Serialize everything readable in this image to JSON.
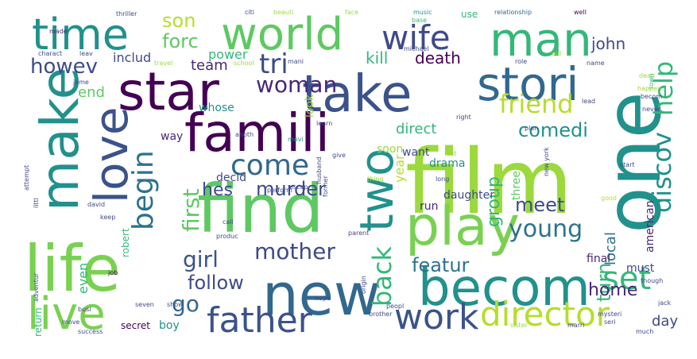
{
  "words": [
    {
      "text": "film",
      "color": "#9bd93c"
    },
    {
      "text": "famili",
      "color": "#440154"
    },
    {
      "text": "find",
      "color": "#5ec962"
    },
    {
      "text": "star",
      "color": "#440154"
    },
    {
      "text": "take",
      "color": "#3b528b"
    },
    {
      "text": "one",
      "color": "#21918c"
    },
    {
      "text": "life",
      "color": "#7ad151"
    },
    {
      "text": "new",
      "color": "#31688e"
    },
    {
      "text": "becom",
      "color": "#21918c"
    },
    {
      "text": "play",
      "color": "#7ad151"
    },
    {
      "text": "world",
      "color": "#5ec962"
    },
    {
      "text": "time",
      "color": "#21918c"
    },
    {
      "text": "man",
      "color": "#35b779"
    },
    {
      "text": "make",
      "color": "#21918c"
    },
    {
      "text": "love",
      "color": "#3b528b"
    },
    {
      "text": "live",
      "color": "#7ad151"
    },
    {
      "text": "stori",
      "color": "#31688e"
    },
    {
      "text": "two",
      "color": "#21918c"
    },
    {
      "text": "work",
      "color": "#3b528b"
    },
    {
      "text": "father",
      "color": "#3b528b"
    },
    {
      "text": "director",
      "color": "#b5de2b"
    },
    {
      "text": "wife",
      "color": "#3e4a89"
    },
    {
      "text": "help",
      "color": "#35b779"
    },
    {
      "text": "discov",
      "color": "#21918c"
    },
    {
      "text": "set",
      "color": "#35b779"
    },
    {
      "text": "come",
      "color": "#31688e"
    },
    {
      "text": "begin",
      "color": "#2c728e"
    },
    {
      "text": "tri",
      "color": "#3e4a89"
    },
    {
      "text": "friend",
      "color": "#b5de2b"
    },
    {
      "text": "woman",
      "color": "#482878"
    },
    {
      "text": "back",
      "color": "#35b779"
    },
    {
      "text": "young",
      "color": "#2c728e"
    },
    {
      "text": "mother",
      "color": "#3e4a89"
    },
    {
      "text": "girl",
      "color": "#3b528b"
    },
    {
      "text": "first",
      "color": "#5ec962"
    },
    {
      "text": "son",
      "color": "#b5de2b"
    },
    {
      "text": "forc",
      "color": "#5ec962"
    },
    {
      "text": "howev",
      "color": "#3e4a89"
    },
    {
      "text": "go",
      "color": "#31688e"
    },
    {
      "text": "follow",
      "color": "#3e4a89"
    },
    {
      "text": "comedi",
      "color": "#21918c"
    },
    {
      "text": "meet",
      "color": "#3e4a89"
    },
    {
      "text": "featur",
      "color": "#2c728e"
    },
    {
      "text": "murder",
      "color": "#3e4a89"
    },
    {
      "text": "turn",
      "color": "#35b779"
    },
    {
      "text": "home",
      "color": "#482878"
    },
    {
      "text": "group",
      "color": "#35b779"
    },
    {
      "text": "kill",
      "color": "#35b779"
    },
    {
      "text": "death",
      "color": "#440154"
    },
    {
      "text": "direct",
      "color": "#35b779"
    },
    {
      "text": "hes",
      "color": "#3e4a89"
    },
    {
      "text": "john",
      "color": "#3e4a89"
    },
    {
      "text": "team",
      "color": "#482878"
    },
    {
      "text": "includ",
      "color": "#3e4a89"
    },
    {
      "text": "end",
      "color": "#5ec962"
    },
    {
      "text": "power",
      "color": "#35b779"
    },
    {
      "text": "whose",
      "color": "#21918c"
    },
    {
      "text": "look",
      "color": "#9bd93c"
    },
    {
      "text": "even",
      "color": "#35b779"
    },
    {
      "text": "local",
      "color": "#2c728e"
    },
    {
      "text": "day",
      "color": "#3e4a89"
    },
    {
      "text": "year",
      "color": "#b5de2b"
    },
    {
      "text": "drama",
      "color": "#21918c"
    },
    {
      "text": "want",
      "color": "#3e4a89"
    },
    {
      "text": "soon",
      "color": "#9bd93c"
    },
    {
      "text": "decid",
      "color": "#3e4a89"
    },
    {
      "text": "way",
      "color": "#482878"
    },
    {
      "text": "robert",
      "color": "#35b779"
    },
    {
      "text": "daughter",
      "color": "#3e4a89"
    },
    {
      "text": "run",
      "color": "#482878"
    },
    {
      "text": "three",
      "color": "#5ec962"
    },
    {
      "text": "american",
      "color": "#482878"
    },
    {
      "text": "must",
      "color": "#3e4a89"
    },
    {
      "text": "final",
      "color": "#482878"
    },
    {
      "text": "boy",
      "color": "#21918c"
    },
    {
      "text": "return",
      "color": "#35b779"
    },
    {
      "text": "secret",
      "color": "#440154"
    },
    {
      "text": "thriller",
      "color": "#3e4a89"
    },
    {
      "text": "citi",
      "color": "#3e4a89"
    },
    {
      "text": "beauti",
      "color": "#9bd93c"
    },
    {
      "text": "face",
      "color": "#9bd93c"
    },
    {
      "text": "music",
      "color": "#21918c"
    },
    {
      "text": "base",
      "color": "#35b779"
    },
    {
      "text": "use",
      "color": "#35b779"
    },
    {
      "text": "relationship",
      "color": "#31688e"
    },
    {
      "text": "well",
      "color": "#440154"
    },
    {
      "text": "made",
      "color": "#482878"
    },
    {
      "text": "charact",
      "color": "#3e4a89"
    },
    {
      "text": "leav",
      "color": "#3e4a89"
    },
    {
      "text": "travel",
      "color": "#9bd93c"
    },
    {
      "text": "school",
      "color": "#9bd93c"
    },
    {
      "text": "name",
      "color": "#3e4a89"
    },
    {
      "text": "town",
      "color": "#35b779"
    },
    {
      "text": "role",
      "color": "#3e4a89"
    },
    {
      "text": "old",
      "color": "#9bd93c"
    },
    {
      "text": "dead",
      "color": "#9bd93c"
    },
    {
      "text": "plan",
      "color": "#3e4a89"
    },
    {
      "text": "lead",
      "color": "#3e4a89"
    },
    {
      "text": "learn",
      "color": "#3e4a89"
    },
    {
      "text": "anoth",
      "color": "#3e4a89"
    },
    {
      "text": "movi",
      "color": "#21918c"
    },
    {
      "text": "give",
      "color": "#3e4a89"
    },
    {
      "text": "long",
      "color": "#3e4a89"
    },
    {
      "text": "perform",
      "color": "#3e4a89"
    },
    {
      "text": "start",
      "color": "#3e4a89"
    },
    {
      "text": "former",
      "color": "#3e4a89"
    },
    {
      "text": "last",
      "color": "#9bd93c"
    },
    {
      "text": "good",
      "color": "#b5de2b"
    },
    {
      "text": "produc",
      "color": "#3e4a89"
    },
    {
      "text": "job",
      "color": "#440154"
    },
    {
      "text": "keep",
      "color": "#3e4a89"
    },
    {
      "text": "call",
      "color": "#3e4a89"
    },
    {
      "text": "parent",
      "color": "#3e4a89"
    },
    {
      "text": "peopl",
      "color": "#3e4a89"
    },
    {
      "text": "brother",
      "color": "#3e4a89"
    },
    {
      "text": "sister",
      "color": "#9bd93c"
    },
    {
      "text": "marri",
      "color": "#3e4a89"
    },
    {
      "text": "seri",
      "color": "#3e4a89"
    },
    {
      "text": "much",
      "color": "#3e4a89"
    },
    {
      "text": "jack",
      "color": "#3e4a89"
    },
    {
      "text": "though",
      "color": "#3e4a89"
    },
    {
      "text": "mysteri",
      "color": "#3e4a89"
    },
    {
      "text": "nope",
      "color": "#3e4a89"
    },
    {
      "text": "origin",
      "color": "#3e4a89"
    },
    {
      "text": "show",
      "color": "#3e4a89"
    },
    {
      "text": "seven",
      "color": "#3e4a89"
    },
    {
      "text": "success",
      "color": "#3e4a89"
    },
    {
      "text": "busi",
      "color": "#3e4a89"
    },
    {
      "text": "david",
      "color": "#3e4a89"
    },
    {
      "text": "littl",
      "color": "#3e4a89"
    },
    {
      "text": "attempt",
      "color": "#3e4a89"
    },
    {
      "text": "adventur",
      "color": "#3e4a89"
    },
    {
      "text": "husband",
      "color": "#3e4a89"
    },
    {
      "text": "escap",
      "color": "#3e4a89"
    },
    {
      "text": "mani",
      "color": "#3e4a89"
    },
    {
      "text": "jame",
      "color": "#3e4a89"
    },
    {
      "text": "right",
      "color": "#3e4a89"
    },
    {
      "text": "thing",
      "color": "#9bd93c"
    },
    {
      "text": "new york",
      "color": "#3e4a89"
    },
    {
      "text": "michael",
      "color": "#3e4a89"
    },
    {
      "text": "becom",
      "color": "#3e4a89"
    },
    {
      "text": "never",
      "color": "#3e4a89"
    },
    {
      "text": "happen",
      "color": "#9bd93c"
    },
    {
      "text": "move",
      "color": "#3e4a89"
    }
  ]
}
